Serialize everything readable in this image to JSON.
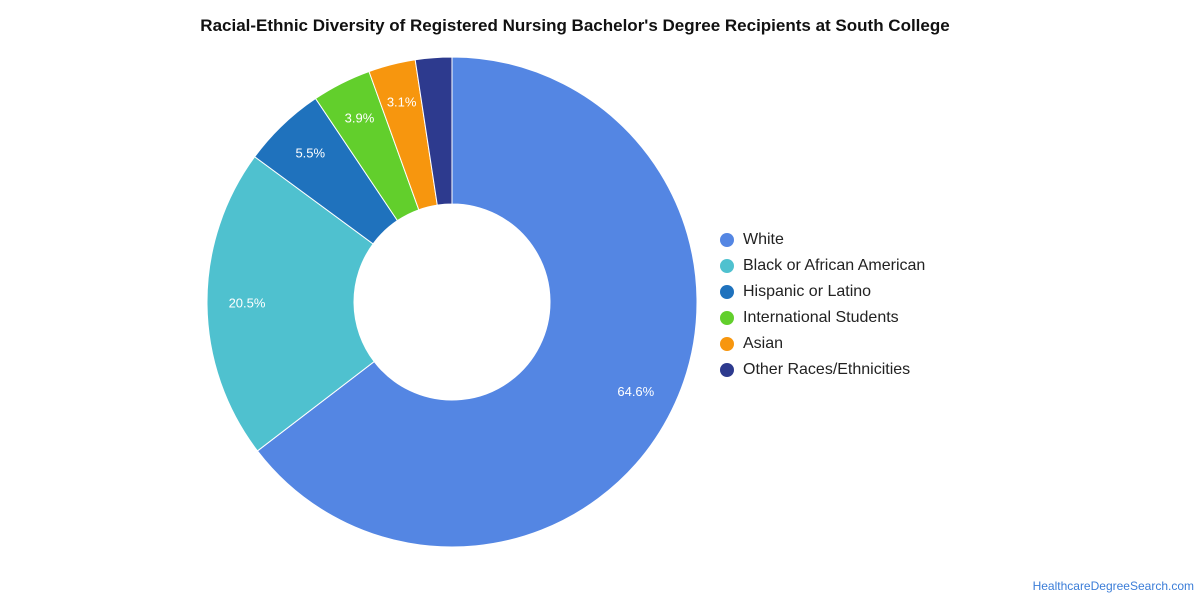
{
  "chart_data": {
    "type": "pie",
    "title": "Racial-Ethnic Diversity of Registered Nursing Bachelor's Degree Recipients at South College",
    "legend_position": "right",
    "series": [
      {
        "name": "White",
        "value": 64.6,
        "label": "64.6%",
        "color": "#5486e3"
      },
      {
        "name": "Black or African American",
        "value": 20.5,
        "label": "20.5%",
        "color": "#4fc1cf"
      },
      {
        "name": "Hispanic or Latino",
        "value": 5.5,
        "label": "5.5%",
        "color": "#1f72bd"
      },
      {
        "name": "International Students",
        "value": 3.9,
        "label": "3.9%",
        "color": "#62cf2c"
      },
      {
        "name": "Asian",
        "value": 3.1,
        "label": "3.1%",
        "color": "#f7960e"
      },
      {
        "name": "Other Races/Ethnicities",
        "value": 2.4,
        "label": "",
        "color": "#2d3a8e"
      }
    ]
  },
  "source": "HealthcareDegreeSearch.com"
}
